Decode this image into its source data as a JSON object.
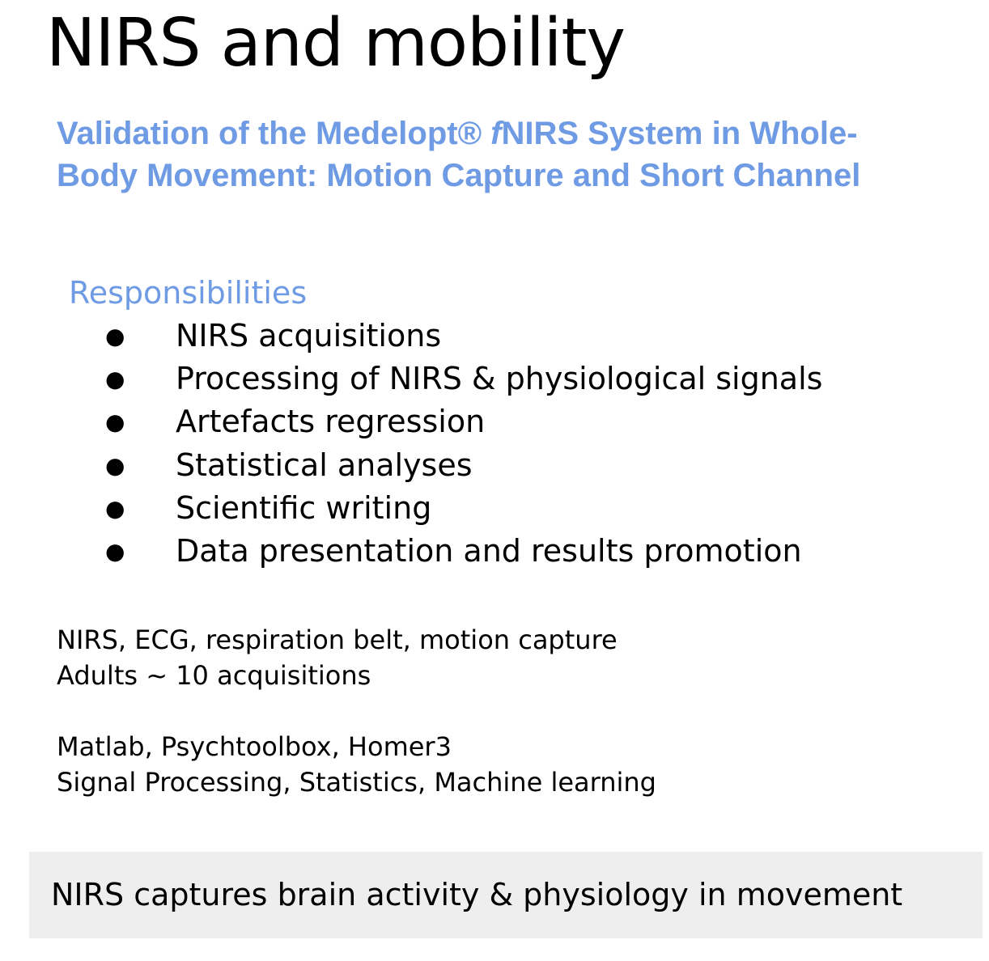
{
  "slide": {
    "title": "NIRS and mobility",
    "subtitle": {
      "part1": "Validation of the Medelopt® ",
      "italic": "f",
      "part2": "NIRS System in Whole-",
      "line2": "Body Movement: Motion Capture and Short Channel"
    },
    "responsibilities": {
      "heading": "Responsibilities",
      "bullet": "●",
      "items": [
        "NIRS acquisitions",
        "Processing of NIRS & physiological signals",
        "Artefacts regression",
        "Statistical analyses",
        "Scientific writing",
        "Data presentation and results promotion"
      ]
    },
    "equipment": {
      "line1": "NIRS, ECG, respiration belt, motion capture",
      "line2": "Adults ~ 10 acquisitions"
    },
    "tools": {
      "line1": "Matlab, Psychtoolbox, Homer3",
      "line2": "Signal Processing, Statistics, Machine learning"
    },
    "footer": {
      "text": "NIRS captures brain activity & physiology in movement",
      "background": "#eeeeee"
    },
    "colors": {
      "accent": "#6f9be4",
      "text": "#000000"
    }
  }
}
